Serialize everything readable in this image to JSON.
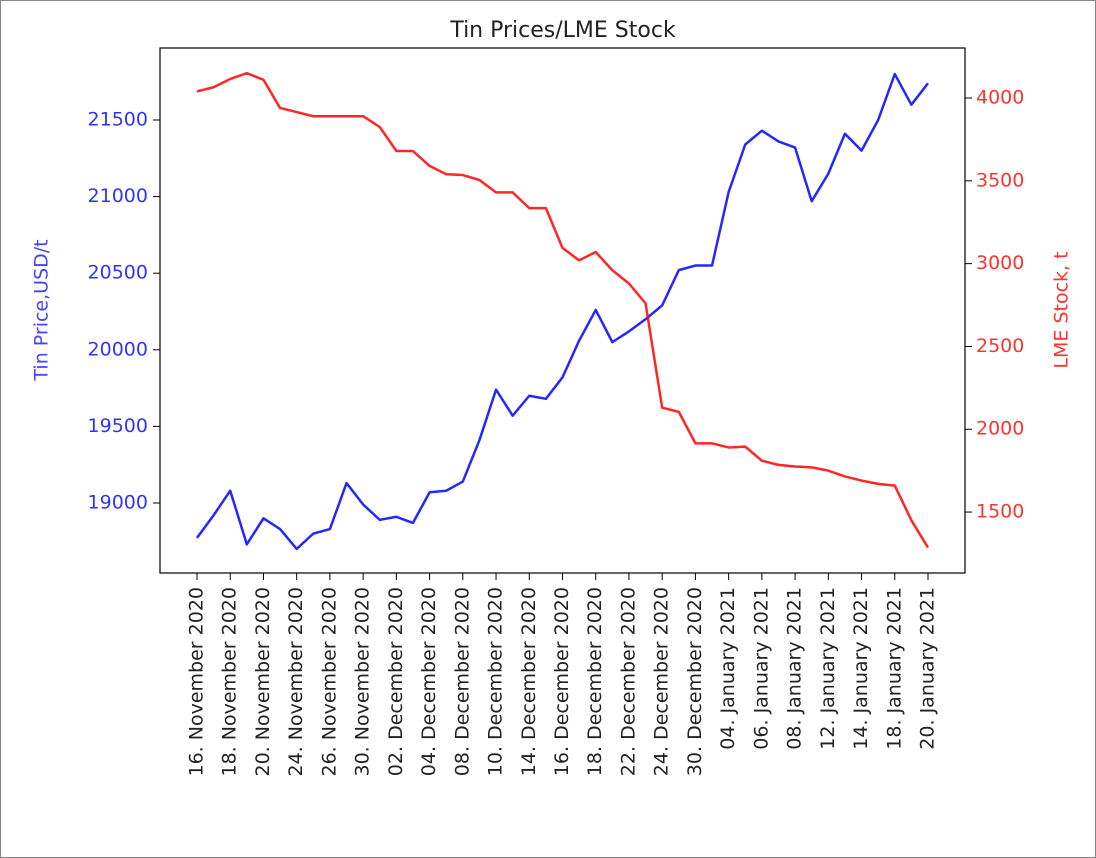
{
  "chart_data": {
    "type": "line",
    "title": "Tin Prices/LME Stock",
    "y_label": "Tin Price,USD/t",
    "y2_label": "LME Stock, t",
    "categories": [
      "16. November 2020",
      null,
      "18. November 2020",
      null,
      "20. November 2020",
      null,
      "24. November 2020",
      null,
      "26. November 2020",
      null,
      "30. November 2020",
      null,
      "02. December 2020",
      null,
      "04. December 2020",
      null,
      "08. December 2020",
      null,
      "10. December 2020",
      null,
      "14. December 2020",
      null,
      "16. December 2020",
      null,
      "18. December 2020",
      null,
      "22. December 2020",
      null,
      "24. December 2020",
      null,
      "30. December 2020",
      null,
      "04. January 2021",
      null,
      "06. January 2021",
      null,
      "08. January 2021",
      null,
      "12. January 2021",
      null,
      "14. January 2021",
      null,
      "18. January 2021",
      null,
      "20. January 2021"
    ],
    "series": [
      {
        "name": "Tin Price,USD/t",
        "color": "#0000ff",
        "axis": "y",
        "values": [
          18772,
          18920,
          19080,
          18730,
          18900,
          18830,
          18700,
          18800,
          18830,
          19130,
          18990,
          18890,
          18910,
          18870,
          19070,
          19080,
          19140,
          19410,
          19740,
          19570,
          19700,
          19680,
          19820,
          20060,
          20260,
          20050,
          20120,
          20200,
          20290,
          20520,
          20550,
          20550,
          21030,
          21340,
          21430,
          21360,
          21320,
          20970,
          21150,
          21410,
          21300,
          21500,
          21800,
          21600,
          21740
        ]
      },
      {
        "name": "LME Stock, t",
        "color": "#ff0000",
        "axis": "y2",
        "values": [
          4040,
          4065,
          4115,
          4150,
          4110,
          3940,
          3915,
          3890,
          3890,
          3890,
          3890,
          3825,
          3680,
          3680,
          3590,
          3540,
          3535,
          3505,
          3430,
          3430,
          3335,
          3335,
          3095,
          3020,
          3070,
          2960,
          2880,
          2760,
          2130,
          2105,
          1915,
          1915,
          1890,
          1895,
          1810,
          1785,
          1775,
          1770,
          1750,
          1715,
          1690,
          1670,
          1660,
          1450,
          1285
        ]
      }
    ],
    "ylim": [
      18543,
      21970
    ],
    "yticks": [
      19000,
      19500,
      20000,
      20500,
      21000,
      21500
    ],
    "y2lim": [
      1132,
      4302
    ],
    "y2ticks": [
      1500,
      2000,
      2500,
      3000,
      3500,
      4000
    ],
    "grid": false
  }
}
